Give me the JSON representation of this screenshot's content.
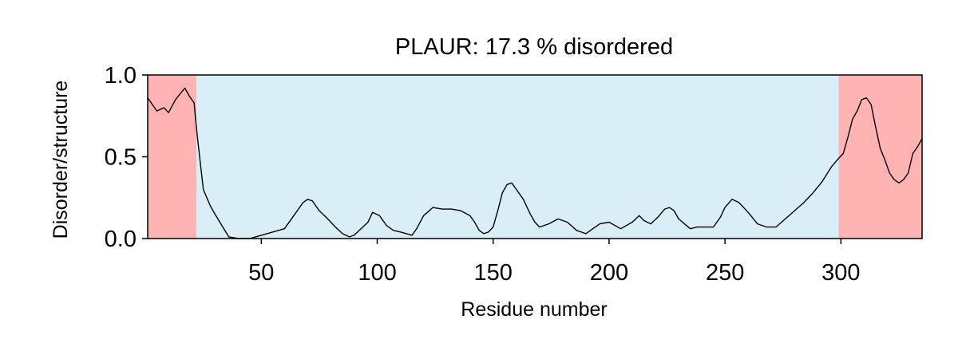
{
  "chart_data": {
    "type": "line",
    "title": "PLAUR: 17.3 % disordered",
    "xlabel": "Residue number",
    "ylabel": "Disorder/structure",
    "xlim": [
      1,
      335
    ],
    "ylim": [
      0,
      1
    ],
    "xticks": [
      50,
      100,
      150,
      200,
      250,
      300
    ],
    "xtick_labels": [
      "50",
      "100",
      "150",
      "200",
      "250",
      "300"
    ],
    "yticks": [
      0,
      0.5,
      1
    ],
    "ytick_labels": [
      "0.0",
      "0.5",
      "1.0"
    ],
    "grid": false,
    "regions": [
      {
        "type": "disordered",
        "start": 1,
        "end": 22,
        "color": "#ffb3b3"
      },
      {
        "type": "structured",
        "start": 22,
        "end": 299,
        "color": "#daeef7"
      },
      {
        "type": "disordered",
        "start": 299,
        "end": 335,
        "color": "#ffb3b3"
      }
    ],
    "series": [
      {
        "color": "#000000",
        "x": [
          1,
          5,
          8,
          10,
          13,
          17,
          19,
          21,
          22,
          23,
          25,
          28,
          30,
          33,
          36,
          40,
          45,
          50,
          55,
          60,
          64,
          68,
          70,
          72,
          75,
          78,
          82,
          85,
          88,
          90,
          93,
          96,
          98,
          101,
          104,
          107,
          110,
          115,
          117,
          120,
          124,
          128,
          132,
          136,
          140,
          142,
          144,
          146,
          148,
          150,
          152,
          154,
          156,
          158,
          160,
          163,
          166,
          168,
          170,
          174,
          178,
          182,
          186,
          190,
          192,
          196,
          200,
          205,
          210,
          213,
          215,
          218,
          221,
          224,
          226,
          228,
          230,
          235,
          238,
          240,
          245,
          248,
          250,
          253,
          256,
          260,
          264,
          268,
          272,
          276,
          280,
          284,
          288,
          292,
          296,
          299,
          301,
          303,
          305,
          307,
          309,
          311,
          313,
          315,
          317,
          319,
          321,
          323,
          325,
          327,
          329,
          331,
          333,
          335
        ],
        "y": [
          0.86,
          0.78,
          0.8,
          0.77,
          0.85,
          0.92,
          0.87,
          0.83,
          0.68,
          0.55,
          0.3,
          0.2,
          0.15,
          0.08,
          0.01,
          0.0,
          0.0,
          0.02,
          0.04,
          0.06,
          0.14,
          0.22,
          0.24,
          0.23,
          0.17,
          0.13,
          0.07,
          0.03,
          0.01,
          0.02,
          0.06,
          0.1,
          0.16,
          0.14,
          0.08,
          0.05,
          0.04,
          0.02,
          0.06,
          0.14,
          0.19,
          0.18,
          0.18,
          0.17,
          0.14,
          0.1,
          0.05,
          0.03,
          0.04,
          0.07,
          0.17,
          0.28,
          0.33,
          0.34,
          0.3,
          0.24,
          0.15,
          0.1,
          0.07,
          0.09,
          0.12,
          0.1,
          0.05,
          0.03,
          0.05,
          0.09,
          0.1,
          0.06,
          0.1,
          0.14,
          0.11,
          0.09,
          0.13,
          0.18,
          0.19,
          0.17,
          0.12,
          0.06,
          0.07,
          0.07,
          0.07,
          0.13,
          0.19,
          0.24,
          0.22,
          0.16,
          0.09,
          0.07,
          0.07,
          0.12,
          0.17,
          0.22,
          0.28,
          0.35,
          0.44,
          0.49,
          0.52,
          0.62,
          0.73,
          0.78,
          0.85,
          0.86,
          0.82,
          0.68,
          0.55,
          0.48,
          0.4,
          0.36,
          0.34,
          0.36,
          0.4,
          0.52,
          0.56,
          0.61
        ]
      }
    ]
  }
}
